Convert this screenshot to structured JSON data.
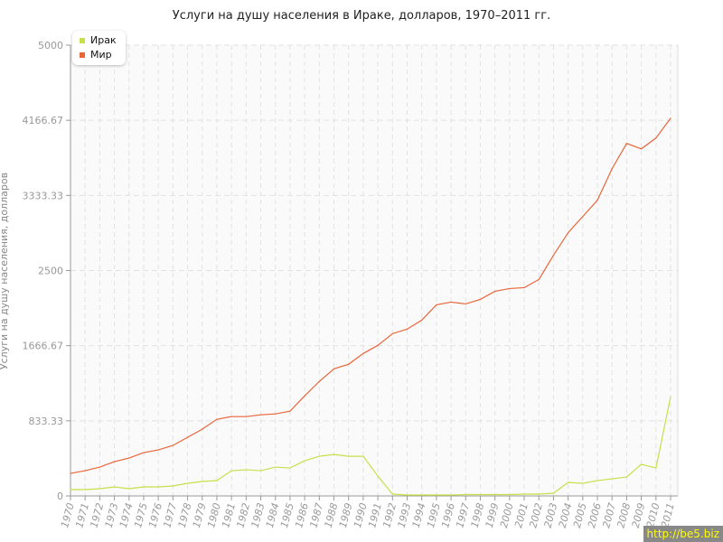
{
  "chart_data": {
    "type": "line",
    "title": "Услуги на душу населения в Ираке, долларов, 1970–2011 гг.",
    "xlabel": "",
    "ylabel": "Услуги на душу населения, долларов",
    "ylim": [
      0,
      5000
    ],
    "yticks": [
      "0",
      "833.33",
      "1666.67",
      "2500",
      "3333.33",
      "4166.67",
      "5000"
    ],
    "grid": true,
    "legend_position": "top-left",
    "x": [
      1970,
      1971,
      1972,
      1973,
      1974,
      1975,
      1976,
      1977,
      1978,
      1979,
      1980,
      1981,
      1982,
      1983,
      1984,
      1985,
      1986,
      1987,
      1988,
      1989,
      1990,
      1991,
      1992,
      1993,
      1994,
      1995,
      1996,
      1997,
      1998,
      1999,
      2000,
      2001,
      2002,
      2003,
      2004,
      2005,
      2006,
      2007,
      2008,
      2009,
      2010,
      2011
    ],
    "series": [
      {
        "name": "Ирак",
        "color": "#c5e04a",
        "values": [
          70,
          70,
          80,
          100,
          80,
          100,
          100,
          110,
          140,
          160,
          170,
          280,
          290,
          280,
          320,
          310,
          390,
          440,
          460,
          440,
          440,
          220,
          20,
          10,
          10,
          10,
          10,
          15,
          15,
          15,
          15,
          20,
          20,
          30,
          150,
          140,
          170,
          190,
          210,
          350,
          310,
          1100
        ]
      },
      {
        "name": "Мир",
        "color": "#e8663a",
        "values": [
          250,
          280,
          320,
          380,
          420,
          480,
          510,
          560,
          650,
          740,
          850,
          880,
          880,
          900,
          910,
          940,
          1110,
          1270,
          1410,
          1460,
          1580,
          1670,
          1800,
          1850,
          1950,
          2120,
          2150,
          2130,
          2180,
          2270,
          2300,
          2310,
          2400,
          2670,
          2920,
          3100,
          3280,
          3630,
          3910,
          3850,
          3970,
          4190
        ]
      }
    ]
  },
  "watermark": "http://be5.biz"
}
